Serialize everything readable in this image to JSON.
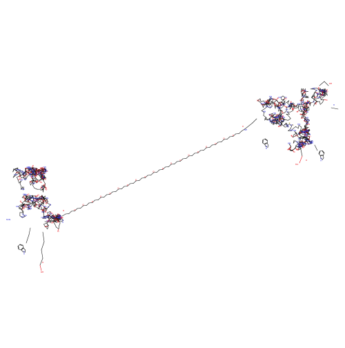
{
  "colors": {
    "bond": "#1a1a1a",
    "oxygen": "#e8131a",
    "nitrogen": "#3232d8",
    "sulfur": "#c8b400",
    "background": "#ffffff"
  },
  "atom_labels": {
    "O": "O",
    "OH": "OH",
    "HO": "HO",
    "NH": "NH",
    "HN": "HN",
    "N": "N",
    "H": "H",
    "S": "S",
    "NH2": "NH2",
    "H2N": "H2N"
  }
}
